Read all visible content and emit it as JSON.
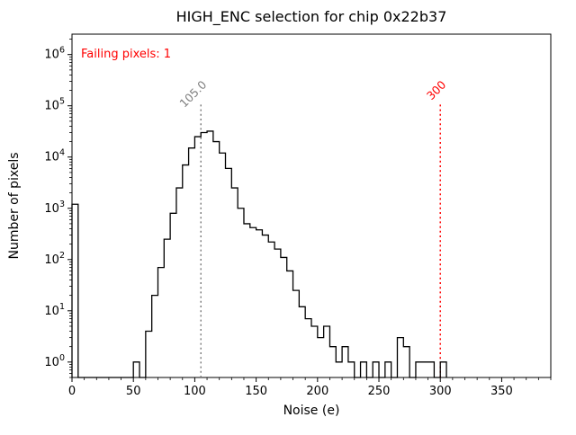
{
  "chart_data": {
    "type": "bar",
    "subtype": "step-histogram",
    "title": "HIGH_ENC selection for chip 0x22b37",
    "xlabel": "Noise (e)",
    "ylabel": "Number of pixels",
    "annotation": "Failing pixels: 1",
    "annotation_color": "#ff0000",
    "yscale": "log",
    "grid": false,
    "legend_position": "none",
    "xlim": [
      0,
      390
    ],
    "ylim": [
      0.5,
      2500000
    ],
    "xticks": [
      0,
      50,
      100,
      150,
      200,
      250,
      300,
      350
    ],
    "x_minor_step": 10,
    "ytick_exponents": [
      0,
      1,
      2,
      3,
      4,
      5,
      6
    ],
    "line_color": "#000000",
    "hist": {
      "x_start": 0,
      "bin_width": 5,
      "counts": [
        1200,
        0,
        0,
        0,
        0,
        0,
        0,
        0,
        0,
        0,
        1,
        0,
        4,
        20,
        70,
        250,
        800,
        2500,
        7000,
        15000,
        25000,
        30000,
        32000,
        20000,
        12000,
        6000,
        2500,
        1000,
        500,
        420,
        380,
        300,
        220,
        160,
        110,
        60,
        25,
        12,
        7,
        5,
        3,
        5,
        2,
        1,
        2,
        1,
        0,
        1,
        0,
        1,
        0,
        1,
        0,
        3,
        2,
        0,
        1,
        1,
        1,
        0,
        1
      ]
    },
    "vlines": [
      {
        "x": 105,
        "label": "105.0",
        "color": "#808080",
        "style": "dotted"
      },
      {
        "x": 300,
        "label": "300",
        "color": "#ff0000",
        "style": "dotted"
      }
    ]
  }
}
